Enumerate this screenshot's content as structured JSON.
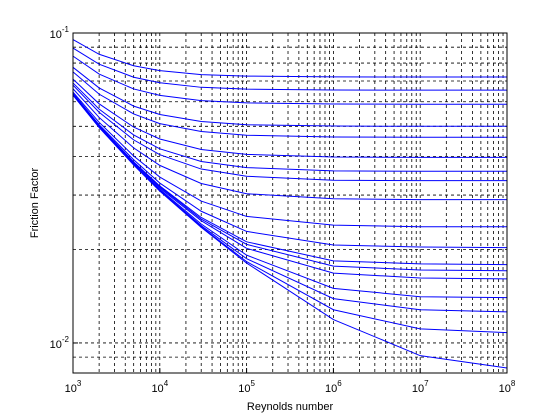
{
  "chart_data": {
    "type": "line",
    "xlabel": "Reynolds number",
    "ylabel": "Friction Factor",
    "xscale": "log",
    "yscale": "log",
    "grid": true,
    "minor_grid": true,
    "xlim": [
      1000,
      100000000
    ],
    "ylim": [
      0.008,
      0.1
    ],
    "xticks": [
      {
        "value": 1000,
        "label": "10",
        "exponent": "3"
      },
      {
        "value": 10000,
        "label": "10",
        "exponent": "4"
      },
      {
        "value": 100000,
        "label": "10",
        "exponent": "5"
      },
      {
        "value": 1000000,
        "label": "10",
        "exponent": "6"
      },
      {
        "value": 10000000,
        "label": "10",
        "exponent": "7"
      },
      {
        "value": 100000000,
        "label": "10",
        "exponent": "8"
      }
    ],
    "yticks": [
      {
        "value": 0.01,
        "label": "10",
        "exponent": "-2"
      },
      {
        "value": 0.1,
        "label": "10",
        "exponent": "-1"
      }
    ],
    "x": [
      1000,
      2000,
      5000,
      10000,
      30000,
      100000,
      1000000,
      10000000,
      100000000
    ],
    "series": [
      {
        "color": "#0000ff",
        "values": [
          0.0952,
          0.0854,
          0.0784,
          0.0756,
          0.0734,
          0.0726,
          0.0722,
          0.0721,
          0.0721
        ]
      },
      {
        "color": "#0000ff",
        "values": [
          0.0894,
          0.0793,
          0.072,
          0.0691,
          0.0668,
          0.0659,
          0.0655,
          0.0654,
          0.0654
        ]
      },
      {
        "color": "#0000ff",
        "values": [
          0.0842,
          0.0737,
          0.066,
          0.0629,
          0.0605,
          0.0595,
          0.059,
          0.0589,
          0.0589
        ]
      },
      {
        "color": "#0000ff",
        "values": [
          0.0775,
          0.0665,
          0.0581,
          0.0546,
          0.0518,
          0.0506,
          0.0501,
          0.05,
          0.05
        ]
      },
      {
        "color": "#0000ff",
        "values": [
          0.0749,
          0.0635,
          0.0548,
          0.051,
          0.0481,
          0.0468,
          0.0462,
          0.0461,
          0.0461
        ]
      },
      {
        "color": "#0000ff",
        "values": [
          0.071,
          0.0591,
          0.0497,
          0.0455,
          0.0421,
          0.0406,
          0.0398,
          0.0397,
          0.0397
        ]
      },
      {
        "color": "#0000ff",
        "values": [
          0.069,
          0.0568,
          0.0469,
          0.0423,
          0.0385,
          0.0368,
          0.0359,
          0.0358,
          0.0358
        ]
      },
      {
        "color": "#0000ff",
        "values": [
          0.0679,
          0.0555,
          0.0452,
          0.0405,
          0.0364,
          0.0345,
          0.0335,
          0.0334,
          0.0334
        ]
      },
      {
        "color": "#0000ff",
        "values": [
          0.0661,
          0.0534,
          0.0426,
          0.0374,
          0.0327,
          0.0303,
          0.0292,
          0.029,
          0.029
        ]
      },
      {
        "color": "#0000ff",
        "values": [
          0.0645,
          0.0515,
          0.0401,
          0.0343,
          0.0287,
          0.0256,
          0.024,
          0.0237,
          0.0237
        ]
      },
      {
        "color": "#0000ff",
        "values": [
          0.0639,
          0.0506,
          0.039,
          0.0328,
          0.0266,
          0.0229,
          0.0207,
          0.0204,
          0.0203
        ]
      },
      {
        "color": "#0000ff",
        "values": [
          0.0635,
          0.0502,
          0.0384,
          0.0321,
          0.0254,
          0.0212,
          0.0184,
          0.018,
          0.0179
        ]
      },
      {
        "color": "#0000ff",
        "values": [
          0.0635,
          0.0501,
          0.0382,
          0.0319,
          0.0251,
          0.0208,
          0.0177,
          0.0172,
          0.0171
        ]
      },
      {
        "color": "#0000ff",
        "values": [
          0.0634,
          0.05,
          0.0381,
          0.0316,
          0.0248,
          0.0202,
          0.0168,
          0.0162,
          0.0161
        ]
      },
      {
        "color": "#0000ff",
        "values": [
          0.0632,
          0.0498,
          0.0378,
          0.0313,
          0.0242,
          0.0192,
          0.015,
          0.0141,
          0.014
        ]
      },
      {
        "color": "#0000ff",
        "values": [
          0.0631,
          0.0497,
          0.0377,
          0.0311,
          0.0239,
          0.0187,
          0.0139,
          0.0128,
          0.0126
        ]
      },
      {
        "color": "#0000ff",
        "values": [
          0.0631,
          0.0496,
          0.0376,
          0.031,
          0.0237,
          0.0183,
          0.0128,
          0.0111,
          0.0108
        ]
      },
      {
        "color": "#0000ff",
        "values": [
          0.063,
          0.0496,
          0.0375,
          0.0309,
          0.0236,
          0.0181,
          0.0119,
          0.0091,
          0.0083
        ]
      }
    ]
  }
}
